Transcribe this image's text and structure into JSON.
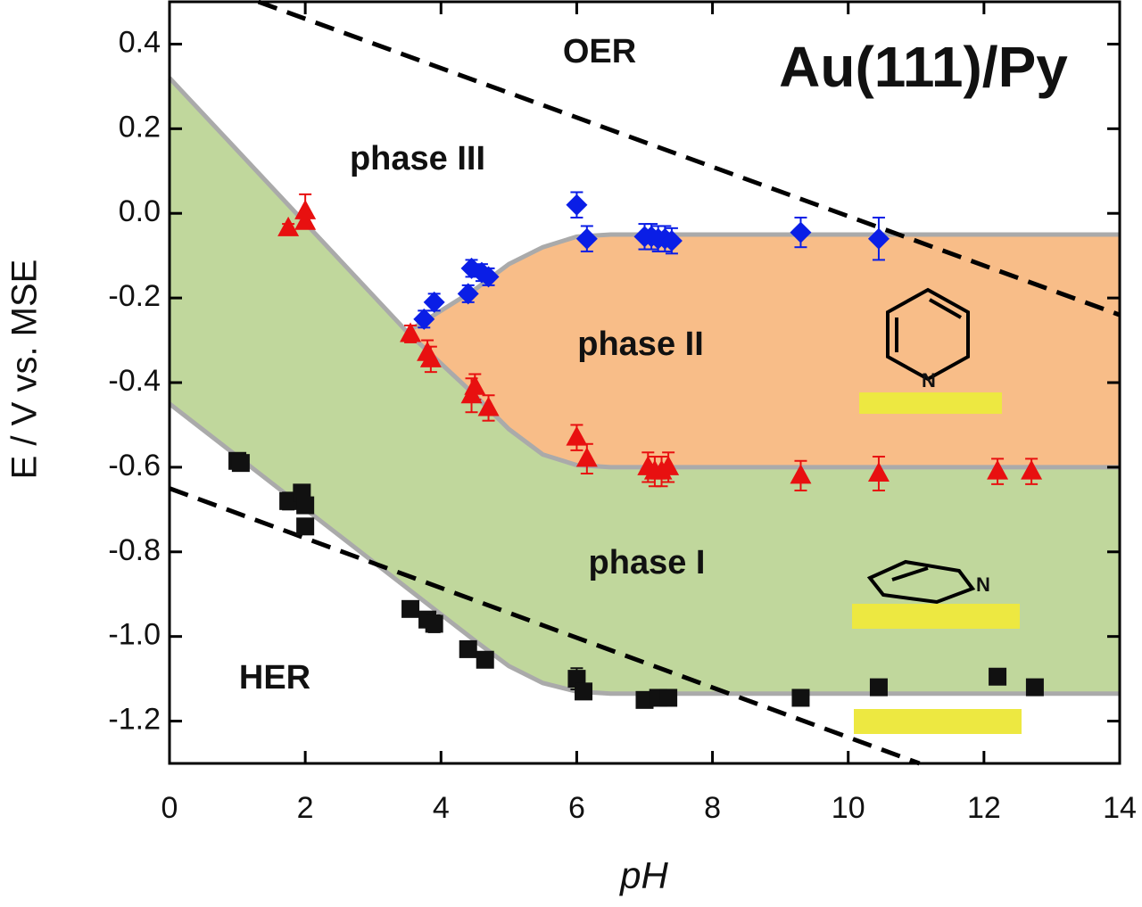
{
  "chart_data": {
    "type": "scatter",
    "title": "Au(111)/Py",
    "x_label": "pH",
    "y_label": "E / V vs. MSE",
    "xlim": [
      0,
      14
    ],
    "ylim": [
      -1.3,
      0.5
    ],
    "xticks": [
      0,
      2,
      4,
      6,
      8,
      10,
      12,
      14
    ],
    "yticks": [
      0.4,
      0.2,
      {
        "value": 0,
        "label": "0.0"
      },
      -0.2,
      -0.4,
      -0.6,
      -0.8,
      {
        "value": -1,
        "label": "-1.0"
      },
      -1.2
    ],
    "annotations": [
      "OER",
      "phase III",
      "phase II",
      "phase I",
      "HER"
    ],
    "molecule_label": "N",
    "series": [
      {
        "marker": "diamond",
        "color": "#0a1ee6",
        "x": [
          3.75,
          3.9,
          4.4,
          4.45,
          4.6,
          4.7,
          6.0,
          6.15,
          7.0,
          7.1,
          7.2,
          7.3,
          7.4,
          9.3,
          10.45
        ],
        "values": [
          -0.25,
          -0.21,
          -0.19,
          -0.13,
          -0.14,
          -0.15,
          0.02,
          -0.06,
          -0.055,
          -0.055,
          -0.06,
          -0.06,
          -0.065,
          -0.045,
          -0.06
        ],
        "errors": [
          0.02,
          0.02,
          0.02,
          0.02,
          0.02,
          0.02,
          0.03,
          0.03,
          0.03,
          0.03,
          0.03,
          0.03,
          0.03,
          0.035,
          0.05
        ]
      },
      {
        "marker": "triangle",
        "color": "#e81010",
        "x": [
          1.75,
          2.0,
          2.0,
          3.55,
          3.8,
          3.85,
          4.45,
          4.5,
          4.7,
          6.0,
          6.15,
          7.05,
          7.15,
          7.25,
          7.35,
          9.3,
          10.45,
          12.2,
          12.7
        ],
        "values": [
          -0.035,
          0.005,
          -0.02,
          -0.285,
          -0.33,
          -0.345,
          -0.43,
          -0.41,
          -0.46,
          -0.53,
          -0.58,
          -0.6,
          -0.61,
          -0.61,
          -0.6,
          -0.62,
          -0.615,
          -0.61,
          -0.61
        ],
        "errors": [
          0.01,
          0.04,
          0.01,
          0.02,
          0.03,
          0.03,
          0.04,
          0.03,
          0.03,
          0.03,
          0.035,
          0.035,
          0.035,
          0.035,
          0.035,
          0.035,
          0.04,
          0.03,
          0.03
        ]
      },
      {
        "marker": "square",
        "color": "#111111",
        "x": [
          1.0,
          1.05,
          1.75,
          1.95,
          2.0,
          2.0,
          3.55,
          3.8,
          3.9,
          4.4,
          4.65,
          6.0,
          6.1,
          7.0,
          7.2,
          7.35,
          9.3,
          10.45,
          12.2,
          12.75
        ],
        "values": [
          -0.585,
          -0.59,
          -0.68,
          -0.66,
          -0.69,
          -0.74,
          -0.935,
          -0.96,
          -0.97,
          -1.03,
          -1.055,
          -1.1,
          -1.13,
          -1.15,
          -1.145,
          -1.145,
          -1.145,
          -1.12,
          -1.095,
          -1.12
        ],
        "errors": [
          0.01,
          0.01,
          0.02,
          0.01,
          0.01,
          0.01,
          0.01,
          0.01,
          0.02,
          0.01,
          0.01,
          0.025,
          0.01,
          0.01,
          0.01,
          0.01,
          0.01,
          0.01,
          0.01,
          0.01
        ]
      }
    ],
    "boundaries": [
      {
        "x": [
          0,
          3.5
        ],
        "y": [
          0.32,
          -0.28
        ]
      },
      {
        "x": [
          3.5,
          4.5,
          5.0,
          5.5,
          6.0,
          6.5,
          14
        ],
        "y": [
          -0.28,
          -0.18,
          -0.12,
          -0.08,
          -0.055,
          -0.05,
          -0.05
        ]
      },
      {
        "x": [
          3.5,
          4.5,
          5.0,
          5.5,
          6.0,
          6.5,
          14
        ],
        "y": [
          -0.28,
          -0.43,
          -0.51,
          -0.57,
          -0.595,
          -0.6,
          -0.6
        ]
      },
      {
        "x": [
          0,
          4.5,
          5.0,
          5.5,
          6.0,
          6.5,
          14
        ],
        "y": [
          -0.45,
          -1.01,
          -1.07,
          -1.11,
          -1.13,
          -1.135,
          -1.135
        ]
      }
    ],
    "region_colors": {
      "green": "#c0d79c",
      "orange": "#f8bd88"
    },
    "reference_lines": [
      {
        "x": [
          1.31,
          14
        ],
        "y": [
          0.5,
          -0.24
        ]
      },
      {
        "x": [
          0,
          11.05
        ],
        "y": [
          -0.65,
          -1.3
        ]
      }
    ]
  }
}
